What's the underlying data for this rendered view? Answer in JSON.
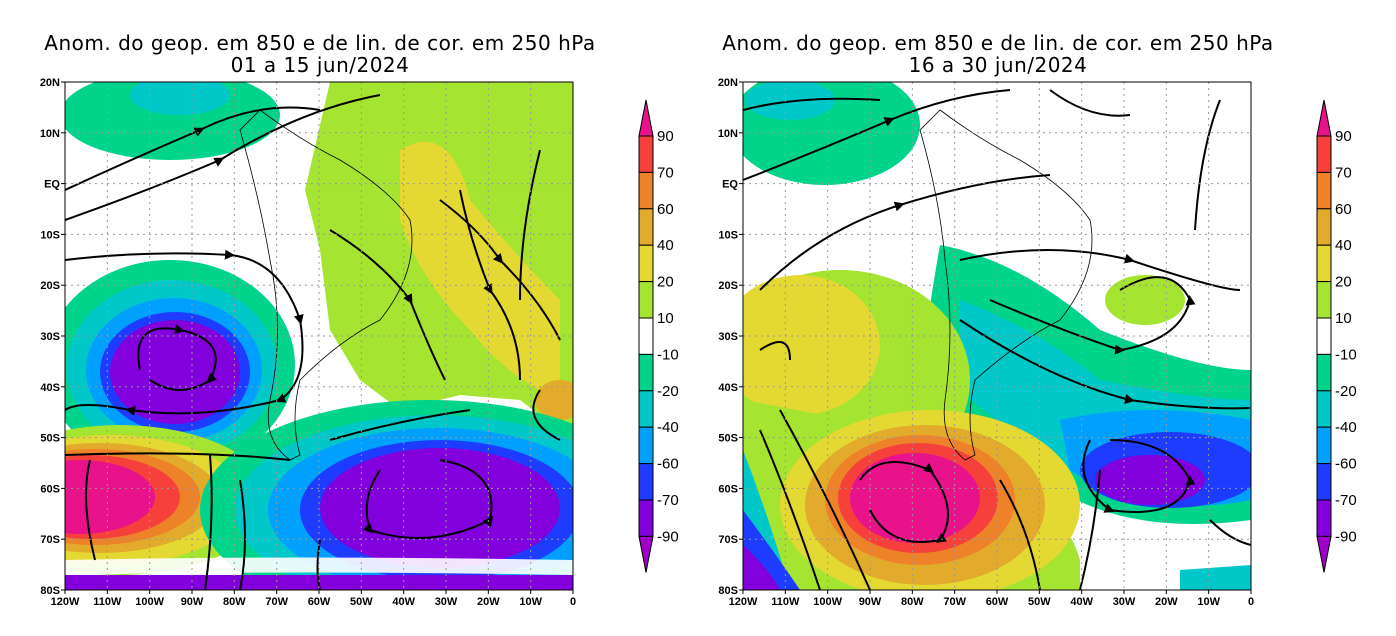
{
  "panels": [
    {
      "title_line1": "Anom. do geop. em 850 e de lin. de cor. em 250 hPa",
      "title_line2": "01 a 15 jun/2024"
    },
    {
      "title_line1": "Anom. do geop. em 850 e de lin. de cor. em 250 hPa",
      "title_line2": "16 a 30 jun/2024"
    }
  ],
  "lat_labels": [
    "20N",
    "10N",
    "EQ",
    "10S",
    "20S",
    "30S",
    "40S",
    "50S",
    "60S",
    "70S",
    "80S"
  ],
  "lon_labels": [
    "120W",
    "110W",
    "100W",
    "90W",
    "80W",
    "70W",
    "60W",
    "50W",
    "40W",
    "30W",
    "20W",
    "10W",
    "0"
  ],
  "colorbar": {
    "labels": [
      "90",
      "70",
      "60",
      "40",
      "20",
      "10",
      "-10",
      "-20",
      "-40",
      "-60",
      "-70",
      "-90"
    ],
    "colors": [
      "#e8128a",
      "#f5403c",
      "#ee8228",
      "#e3ab2c",
      "#e4d832",
      "#a6e432",
      "#ffffff",
      "#00d48a",
      "#00c8c8",
      "#00a0ff",
      "#1e3cff",
      "#8200dc",
      "#a000c8"
    ]
  }
}
